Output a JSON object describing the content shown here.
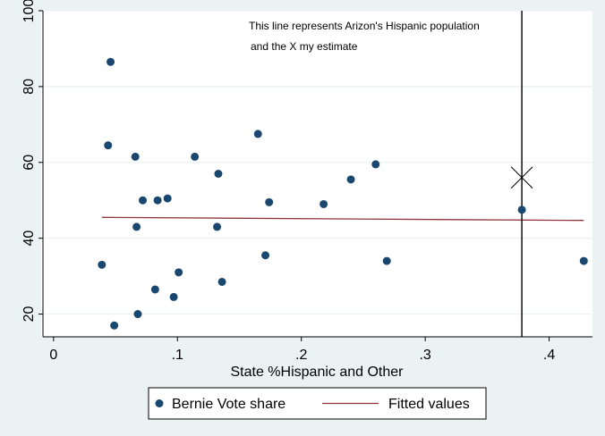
{
  "colors": {
    "outer_bg": "#eaf2f3",
    "plot_bg": "#ffffff",
    "grid": "#eaf2f3",
    "axis": "#000000",
    "point": "#1a476f",
    "fit": "#90353b",
    "annotation": "#000000"
  },
  "chart_data": {
    "type": "scatter",
    "title": "",
    "xlabel": "State %Hispanic and Other",
    "ylabel": "",
    "xlim": [
      -0.01,
      0.435
    ],
    "ylim": [
      14,
      100
    ],
    "x_ticks": [
      {
        "value": 0,
        "label": "0"
      },
      {
        "value": 0.1,
        "label": ".1"
      },
      {
        "value": 0.2,
        "label": ".2"
      },
      {
        "value": 0.3,
        "label": ".3"
      },
      {
        "value": 0.4,
        "label": ".4"
      }
    ],
    "y_ticks": [
      {
        "value": 20,
        "label": "20"
      },
      {
        "value": 40,
        "label": "40"
      },
      {
        "value": 60,
        "label": "60"
      },
      {
        "value": 80,
        "label": "80"
      },
      {
        "value": 100,
        "label": "100"
      }
    ],
    "grid": true,
    "series": [
      {
        "name": "Bernie Vote share",
        "type": "scatter",
        "x": [
          0.039,
          0.044,
          0.046,
          0.049,
          0.066,
          0.067,
          0.068,
          0.072,
          0.082,
          0.084,
          0.092,
          0.097,
          0.101,
          0.114,
          0.132,
          0.133,
          0.136,
          0.165,
          0.171,
          0.174,
          0.218,
          0.24,
          0.26,
          0.269,
          0.378,
          0.428
        ],
        "y": [
          33.0,
          64.5,
          86.5,
          17.0,
          61.5,
          43.0,
          20.0,
          50.0,
          26.5,
          50.0,
          50.5,
          24.5,
          31.0,
          61.5,
          43.0,
          57.0,
          28.5,
          67.5,
          35.5,
          49.5,
          49.0,
          55.5,
          59.5,
          34.0,
          47.5,
          34.0
        ]
      },
      {
        "name": "Fitted values",
        "type": "line",
        "x": [
          0.039,
          0.428
        ],
        "y": [
          45.5,
          44.7
        ]
      }
    ],
    "annotations": {
      "vertical_line_x": 0.378,
      "marker_x": {
        "x": 0.378,
        "y": 56
      },
      "text_lines": [
        "This line represents Arizon's Hispanic population",
        "and the X my estimate"
      ]
    },
    "legend": {
      "placement": "bottom",
      "entries": [
        "Bernie Vote share",
        "Fitted values"
      ]
    }
  }
}
